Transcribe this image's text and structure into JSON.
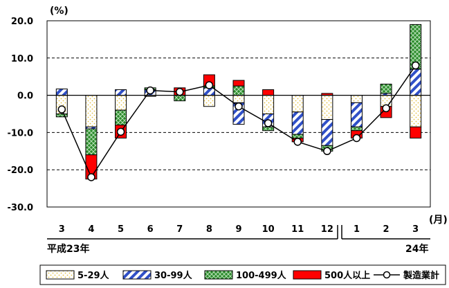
{
  "chart_data": {
    "type": "bar",
    "stacked": true,
    "y_unit": "(%)",
    "x_unit": "(月)",
    "ylim": [
      -30,
      20
    ],
    "ytick_labels": [
      "20.0",
      "10.0",
      "0.0",
      "-10.0",
      "-20.0",
      "-30.0"
    ],
    "gridlines": "dashed at 20, 10, -10, -20",
    "categories": [
      "3",
      "4",
      "5",
      "6",
      "7",
      "8",
      "9",
      "10",
      "11",
      "12",
      "1",
      "2",
      "3"
    ],
    "year_labels": [
      "平成23年",
      "24年"
    ],
    "series": [
      {
        "name": "5-29人",
        "color": "#ffffff",
        "pattern": "dots",
        "values": [
          -5.0,
          -8.5,
          -4.0,
          -0.3,
          0,
          -3.0,
          -2.0,
          -5.0,
          -4.5,
          -6.5,
          -2.0,
          -3.0,
          -8.5
        ]
      },
      {
        "name": "30-99人",
        "color": "#3050c8",
        "pattern": "diagonal-stripes",
        "values": [
          1.7,
          -0.5,
          1.5,
          1.5,
          0,
          2.0,
          -5.8,
          -3.5,
          -6.0,
          -7.0,
          -6.5,
          0.5,
          7.0
        ]
      },
      {
        "name": "100-499人",
        "color": "#2a8a2a",
        "pattern": "crosshatch",
        "values": [
          -0.8,
          -7.0,
          -4.0,
          0.5,
          -1.5,
          0.5,
          2.5,
          -1.0,
          -1.0,
          -1.5,
          -1.0,
          2.5,
          12.0
        ]
      },
      {
        "name": "500人以上",
        "color": "#ff0000",
        "pattern": "solid",
        "values": [
          0,
          -6.5,
          -3.5,
          0,
          2.0,
          3.0,
          1.5,
          1.5,
          -1.0,
          0.5,
          -2.0,
          -3.0,
          -3.0
        ]
      }
    ],
    "line": {
      "name": "製造業計",
      "values": [
        -3.8,
        -22.0,
        -9.8,
        1.3,
        0.9,
        2.7,
        -3.0,
        -7.5,
        -12.5,
        -15.0,
        -11.5,
        -3.5,
        8.0
      ]
    }
  }
}
